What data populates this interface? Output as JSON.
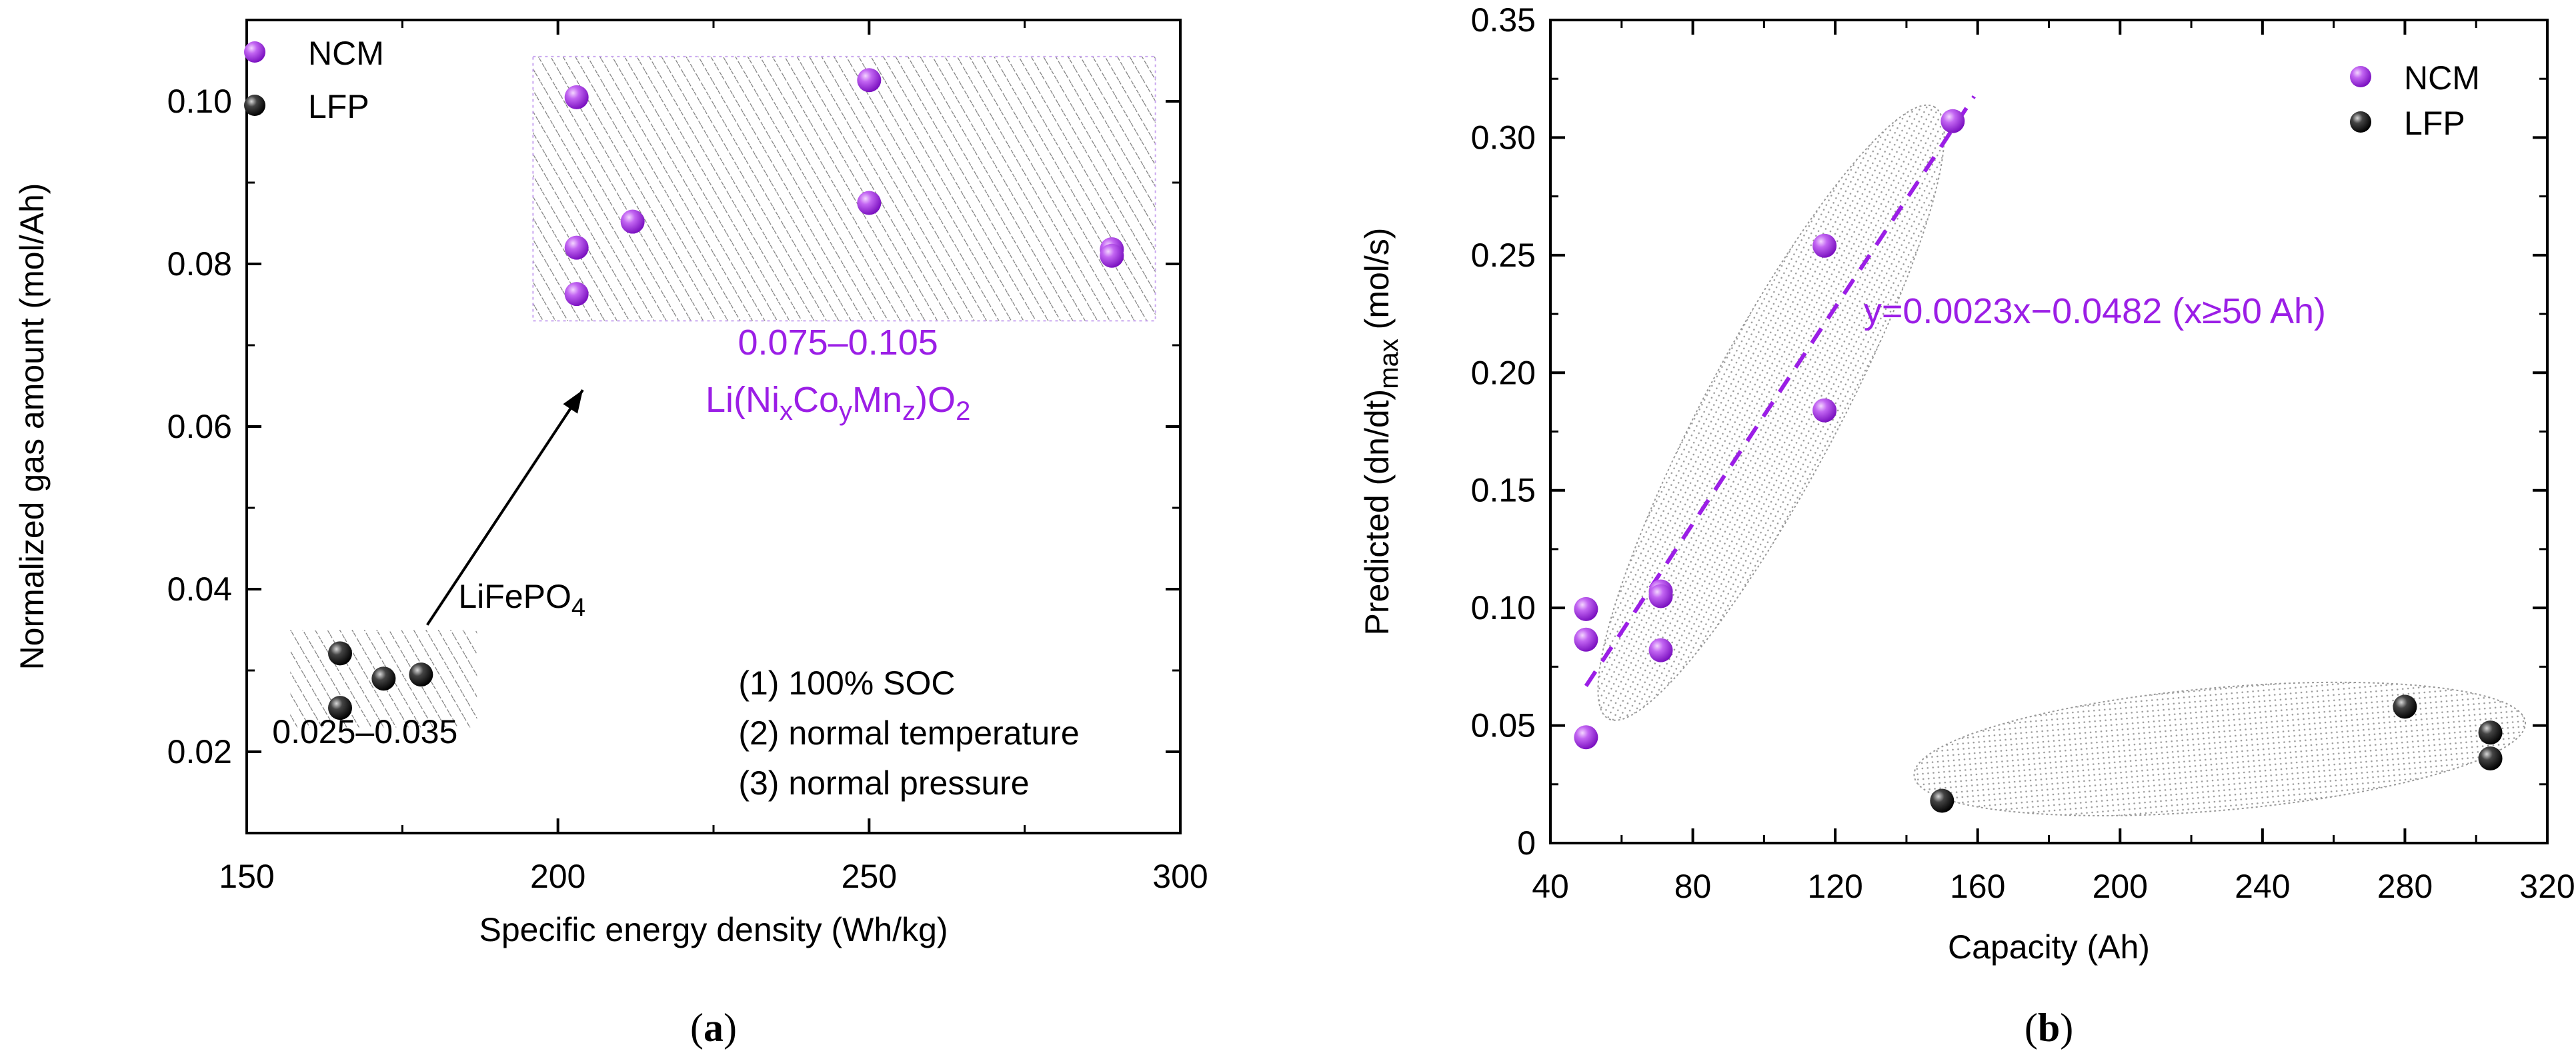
{
  "colors": {
    "ncm": "#a020f0",
    "lfp": "#111111",
    "accent_text": "#9b1ee6"
  },
  "chart_data": [
    {
      "type": "scatter",
      "caption_letter": "a",
      "xlabel": "Specific energy density (Wh/kg)",
      "ylabel": "Normalized gas amount (mol/Ah)",
      "xlim": [
        150,
        300
      ],
      "ylim": [
        0.01,
        0.11
      ],
      "xticks": [
        150,
        200,
        250,
        300
      ],
      "yticks": [
        0.02,
        0.04,
        0.06,
        0.08,
        0.1
      ],
      "xtick_labels": [
        "150",
        "200",
        "250",
        "300"
      ],
      "ytick_labels": [
        "0.02",
        "0.04",
        "0.06",
        "0.08",
        "0.10"
      ],
      "legend": [
        "NCM",
        "LFP"
      ],
      "series": [
        {
          "name": "NCM",
          "points": [
            [
              203,
              0.1005
            ],
            [
              250,
              0.1026
            ],
            [
              203,
              0.082
            ],
            [
              212,
              0.0852
            ],
            [
              250,
              0.0875
            ],
            [
              203,
              0.0763
            ],
            [
              289,
              0.0818
            ],
            [
              289,
              0.081
            ]
          ]
        },
        {
          "name": "LFP",
          "points": [
            [
              165,
              0.0321
            ],
            [
              165,
              0.0254
            ],
            [
              172,
              0.029
            ],
            [
              178,
              0.0295
            ]
          ]
        }
      ],
      "regions": [
        {
          "name": "ncm-region",
          "x": [
            196,
            296
          ],
          "y": [
            0.073,
            0.1055
          ]
        },
        {
          "name": "lfp-region",
          "x": [
            157,
            187
          ],
          "y": [
            0.023,
            0.035
          ]
        }
      ],
      "annotations": {
        "ncm_range": "0.075–0.105",
        "ncm_formula": {
          "pre": "Li(Ni",
          "s1": "x",
          "m1": "Co",
          "s2": "y",
          "m2": "Mn",
          "s3": "z",
          "m3": ")O",
          "s4": "2"
        },
        "lfp_formula": {
          "pre": "LiFePO",
          "s1": "4"
        },
        "lfp_range": "0.025–0.035",
        "conditions": [
          "(1) 100% SOC",
          "(2) normal temperature",
          "(3) normal pressure"
        ]
      }
    },
    {
      "type": "scatter",
      "caption_letter": "b",
      "xlabel": "Capacity (Ah)",
      "ylabel": {
        "pre": "Predicted (dn/dt)",
        "sub": "max",
        "post": " (mol/s)"
      },
      "xlim": [
        40,
        320
      ],
      "ylim": [
        0,
        0.35
      ],
      "xticks": [
        40,
        80,
        120,
        160,
        200,
        240,
        280,
        320
      ],
      "yticks": [
        0,
        0.05,
        0.1,
        0.15,
        0.2,
        0.25,
        0.3,
        0.35
      ],
      "xtick_labels": [
        "40",
        "80",
        "120",
        "160",
        "200",
        "240",
        "280",
        "320"
      ],
      "ytick_labels": [
        "0",
        "0.05",
        "0.10",
        "0.15",
        "0.20",
        "0.25",
        "0.30",
        "0.35"
      ],
      "legend": [
        "NCM",
        "LFP"
      ],
      "series": [
        {
          "name": "NCM",
          "points": [
            [
              50,
              0.0995
            ],
            [
              50,
              0.0865
            ],
            [
              50,
              0.045
            ],
            [
              71,
              0.107
            ],
            [
              71,
              0.105
            ],
            [
              71,
              0.082
            ],
            [
              117,
              0.254
            ],
            [
              117,
              0.184
            ],
            [
              153,
              0.307
            ]
          ]
        },
        {
          "name": "LFP",
          "points": [
            [
              150,
              0.018
            ],
            [
              280,
              0.058
            ],
            [
              304,
              0.047
            ],
            [
              304,
              0.036
            ]
          ]
        }
      ],
      "fit_line": {
        "x": [
          50,
          159
        ],
        "label": "y=0.0023x−0.0482 (x≥50 Ah)",
        "slope": 0.0023,
        "intercept": -0.0482
      }
    }
  ]
}
